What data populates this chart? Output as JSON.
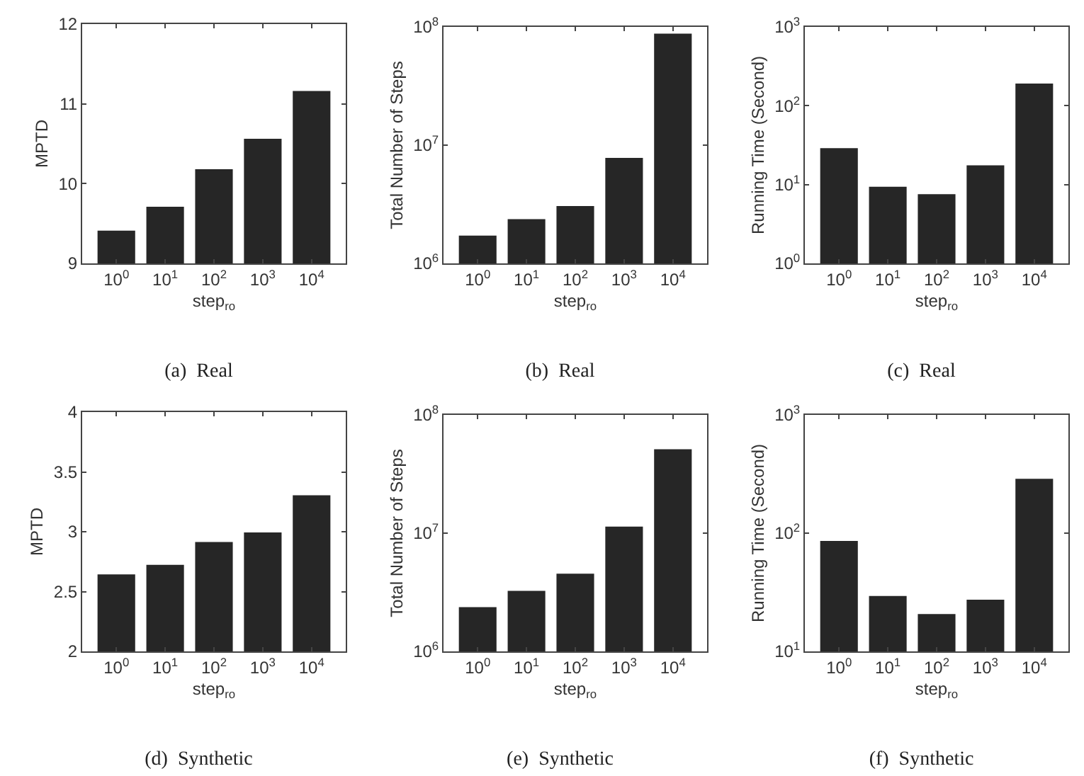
{
  "chart_data": [
    {
      "type": "bar",
      "title": "(a)  Real",
      "xlabel": "step$_{ro}$",
      "ylabel": "MPTD",
      "categories": [
        "10$^{0}$",
        "10$^{1}$",
        "10$^{2}$",
        "10$^{3}$",
        "10$^{4}$"
      ],
      "values": [
        9.42,
        9.72,
        10.19,
        10.57,
        11.17
      ],
      "color": "#262626",
      "ylim": [
        9,
        12
      ],
      "yticks": [
        9,
        10,
        11,
        12
      ]
    },
    {
      "type": "bar",
      "title": "(b)  Real",
      "xlabel": "step$_{ro}$",
      "ylabel": "Total Number of Steps",
      "categories": [
        "10$^{0}$",
        "10$^{1}$",
        "10$^{2}$",
        "10$^{3}$",
        "10$^{4}$"
      ],
      "values": [
        1740000,
        2400000,
        3100000,
        7900000,
        89000000
      ],
      "color": "#262626",
      "log": true,
      "ylim": [
        1000000,
        100000000
      ],
      "yticks": [
        {
          "value": 1000000,
          "label": "10$^{6}$"
        },
        {
          "value": 10000000,
          "label": "10$^{7}$"
        },
        {
          "value": 100000000,
          "label": "10$^{8}$"
        }
      ]
    },
    {
      "type": "bar",
      "title": "(c)  Real",
      "xlabel": "step$_{ro}$",
      "ylabel": "Running Time (Second)",
      "categories": [
        "10$^{0}$",
        "10$^{1}$",
        "10$^{2}$",
        "10$^{3}$",
        "10$^{4}$"
      ],
      "values": [
        29.5,
        9.6,
        7.7,
        17.9,
        195
      ],
      "color": "#262626",
      "log": true,
      "ylim": [
        1,
        1000
      ],
      "yticks": [
        {
          "value": 1,
          "label": "10$^{0}$"
        },
        {
          "value": 10,
          "label": "10$^{1}$"
        },
        {
          "value": 100,
          "label": "10$^{2}$"
        },
        {
          "value": 1000,
          "label": "10$^{3}$"
        }
      ]
    },
    {
      "type": "bar",
      "title": "(d)  Synthetic",
      "xlabel": "step$_{ro}$",
      "ylabel": "MPTD",
      "categories": [
        "10$^{0}$",
        "10$^{1}$",
        "10$^{2}$",
        "10$^{3}$",
        "10$^{4}$"
      ],
      "values": [
        2.65,
        2.73,
        2.92,
        3.0,
        3.31
      ],
      "color": "#262626",
      "ylim": [
        2,
        4
      ],
      "yticks": [
        2,
        2.5,
        3,
        3.5,
        4
      ]
    },
    {
      "type": "bar",
      "title": "(e)  Synthetic",
      "xlabel": "step$_{ro}$",
      "ylabel": "Total Number of Steps",
      "categories": [
        "10$^{0}$",
        "10$^{1}$",
        "10$^{2}$",
        "10$^{3}$",
        "10$^{4}$"
      ],
      "values": [
        2400000,
        3300000,
        4600000,
        11500000,
        52000000
      ],
      "color": "#262626",
      "log": true,
      "ylim": [
        1000000,
        100000000
      ],
      "yticks": [
        {
          "value": 1000000,
          "label": "10$^{6}$"
        },
        {
          "value": 10000000,
          "label": "10$^{7}$"
        },
        {
          "value": 100000000,
          "label": "10$^{8}$"
        }
      ]
    },
    {
      "type": "bar",
      "title": "(f)  Synthetic",
      "xlabel": "step$_{ro}$",
      "ylabel": "Running Time (Second)",
      "categories": [
        "10$^{0}$",
        "10$^{1}$",
        "10$^{2}$",
        "10$^{3}$",
        "10$^{4}$"
      ],
      "values": [
        87,
        29.8,
        21,
        27.7,
        292
      ],
      "color": "#262626",
      "log": true,
      "ylim": [
        10,
        1000
      ],
      "yticks": [
        {
          "value": 10,
          "label": "10$^{1}$"
        },
        {
          "value": 100,
          "label": "10$^{2}$"
        },
        {
          "value": 1000,
          "label": "10$^{3}$"
        }
      ]
    }
  ]
}
